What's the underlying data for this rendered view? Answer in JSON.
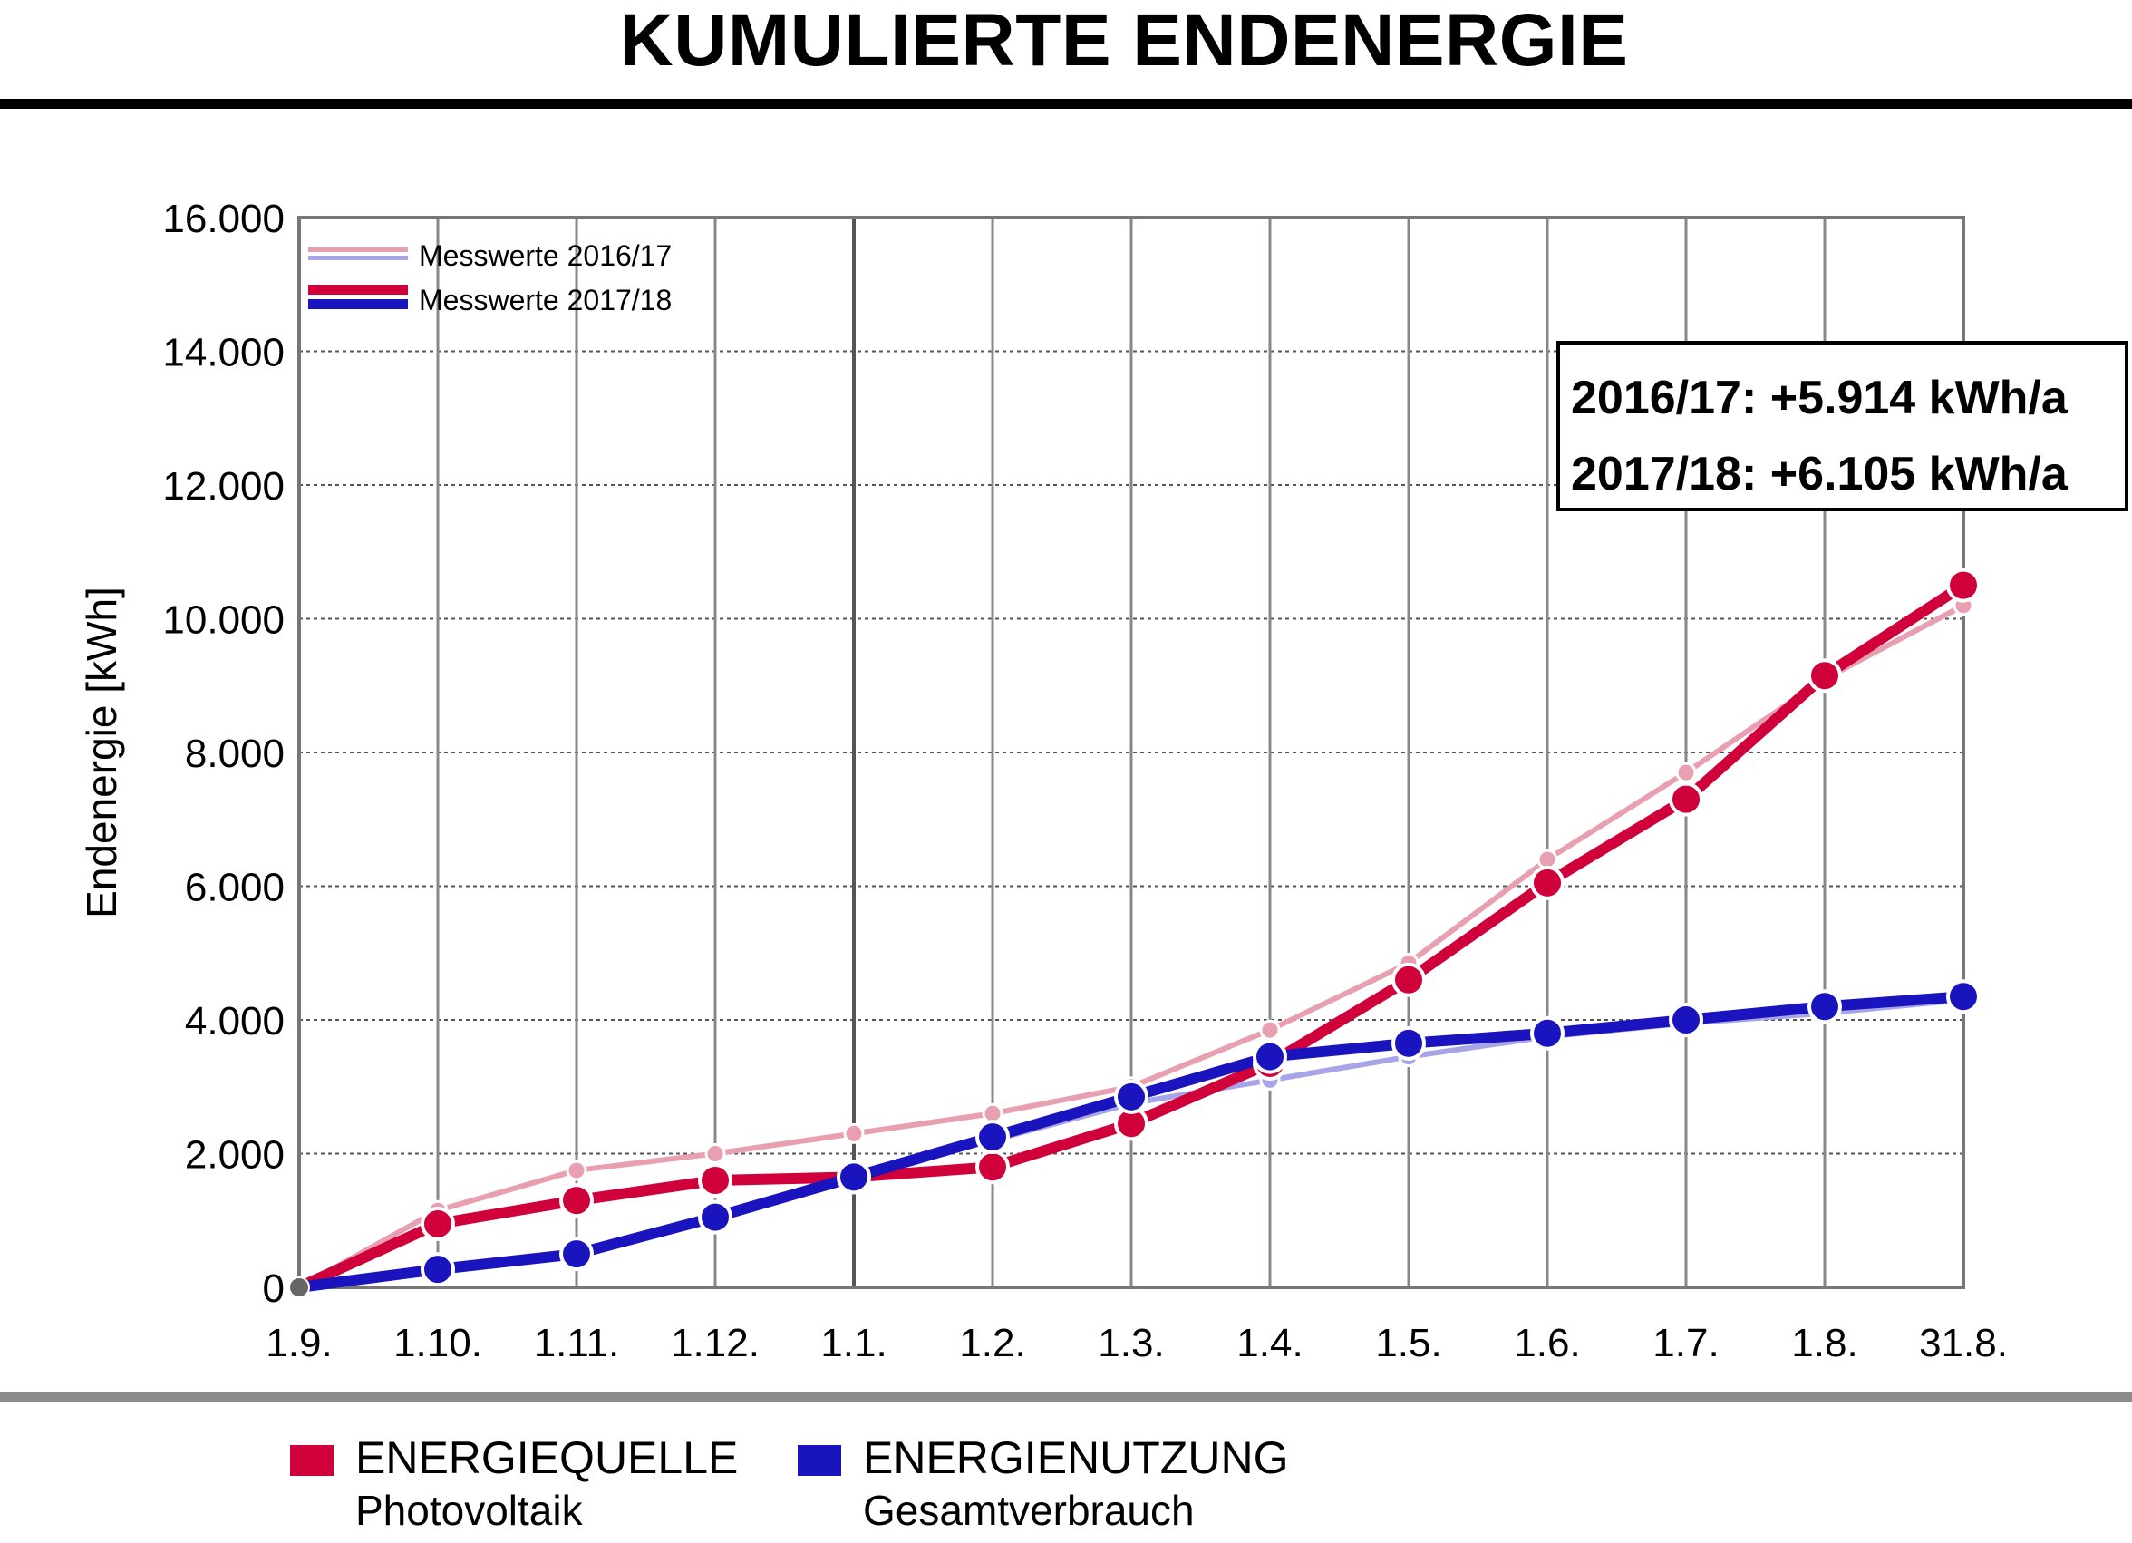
{
  "header": {
    "title": "KUMULIERTE ENDENERGIE"
  },
  "colors": {
    "quelle_2017_18": "#d0003a",
    "quelle_2016_17": "#e8a0b0",
    "nutzung_2017_18": "#1a14bf",
    "nutzung_2016_17": "#a8a4e8",
    "grid": "#666666",
    "separator": "#8c8c8c"
  },
  "chart_data": {
    "type": "line",
    "title": "KUMULIERTE ENDENERGIE",
    "xlabel": "",
    "ylabel": "Endenergie [kWh]",
    "categories": [
      "1.9.",
      "1.10.",
      "1.11.",
      "1.12.",
      "1.1.",
      "1.2.",
      "1.3.",
      "1.4.",
      "1.5.",
      "1.6.",
      "1.7.",
      "1.8.",
      "31.8."
    ],
    "y_ticks": [
      "0",
      "2.000",
      "4.000",
      "6.000",
      "8.000",
      "10.000",
      "12.000",
      "14.000",
      "16.000"
    ],
    "ylim": [
      0,
      16000
    ],
    "grid": true,
    "legend": {
      "placement": "top-left",
      "entries": [
        "Messwerte 2016/17",
        "Messwerte 2017/18"
      ]
    },
    "annotation": {
      "placement": "top-right",
      "lines": [
        "2016/17: +5.914 kWh/a",
        "2017/18: +6.105 kWh/a"
      ]
    },
    "series": [
      {
        "name": "Photovoltaik 2016/17",
        "color": "#e8a0b0",
        "style": "thin",
        "values": [
          0,
          1150,
          1750,
          2000,
          2300,
          2600,
          3000,
          3850,
          4850,
          6400,
          7700,
          9100,
          10200
        ]
      },
      {
        "name": "Gesamtverbrauch 2016/17",
        "color": "#a8a4e8",
        "style": "thin",
        "values": [
          0,
          270,
          500,
          1050,
          1700,
          2200,
          2750,
          3100,
          3450,
          3750,
          3950,
          4100,
          4300
        ]
      },
      {
        "name": "Photovoltaik 2017/18",
        "color": "#d0003a",
        "style": "thick",
        "values": [
          0,
          950,
          1300,
          1600,
          1650,
          1800,
          2450,
          3350,
          4600,
          6050,
          7300,
          9150,
          10500
        ]
      },
      {
        "name": "Gesamtverbrauch 2017/18",
        "color": "#1a14bf",
        "style": "thick",
        "values": [
          0,
          270,
          500,
          1050,
          1650,
          2250,
          2850,
          3450,
          3650,
          3800,
          4000,
          4200,
          4350
        ]
      }
    ]
  },
  "bottom_legend": [
    {
      "category": "ENERGIEQUELLE",
      "sub": "Photovoltaik",
      "color": "#d0003a"
    },
    {
      "category": "ENERGIENUTZUNG",
      "sub": "Gesamtverbrauch",
      "color": "#1a14bf"
    }
  ]
}
